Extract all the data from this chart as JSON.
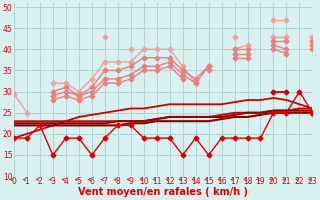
{
  "x": [
    0,
    1,
    2,
    3,
    4,
    5,
    6,
    7,
    8,
    9,
    10,
    11,
    12,
    13,
    14,
    15,
    16,
    17,
    18,
    19,
    20,
    21,
    22,
    23
  ],
  "lines": [
    {
      "name": "light_pink_erratic",
      "color": "#f0a0a0",
      "linewidth": 1.0,
      "marker": "D",
      "markersize": 2.5,
      "y": [
        29.5,
        25,
        null,
        null,
        null,
        null,
        null,
        43,
        null,
        40,
        null,
        null,
        null,
        null,
        null,
        null,
        null,
        43,
        null,
        null,
        47,
        47,
        null,
        43
      ]
    },
    {
      "name": "light_pink_rising1",
      "color": "#f0a0a0",
      "linewidth": 1.0,
      "marker": "D",
      "markersize": 2.5,
      "y": [
        null,
        null,
        null,
        32,
        32,
        30,
        33,
        37,
        37,
        37,
        40,
        40,
        40,
        36,
        32,
        36,
        null,
        40,
        41,
        null,
        43,
        43,
        null,
        43
      ]
    },
    {
      "name": "pink_rising2",
      "color": "#e88080",
      "linewidth": 1.0,
      "marker": "D",
      "markersize": 2.5,
      "y": [
        null,
        null,
        null,
        30,
        31,
        29,
        31,
        35,
        35,
        36,
        38,
        38,
        38,
        35,
        33,
        36,
        null,
        40,
        40,
        null,
        42,
        42,
        null,
        42
      ]
    },
    {
      "name": "pink_rising3",
      "color": "#e88080",
      "linewidth": 1.0,
      "marker": "D",
      "markersize": 2.5,
      "y": [
        null,
        null,
        null,
        29,
        30,
        29,
        30,
        33,
        33,
        34,
        36,
        36,
        37,
        34,
        32,
        36,
        null,
        39,
        39,
        null,
        41,
        40,
        null,
        41
      ]
    },
    {
      "name": "pink_rising4",
      "color": "#e88080",
      "linewidth": 1.0,
      "marker": "D",
      "markersize": 2.5,
      "y": [
        null,
        null,
        null,
        28,
        29,
        28,
        29,
        32,
        32,
        33,
        35,
        35,
        36,
        33,
        null,
        35,
        null,
        38,
        38,
        null,
        40,
        39,
        null,
        40
      ]
    },
    {
      "name": "red_line_steep",
      "color": "#cc0000",
      "linewidth": 1.3,
      "marker": "D",
      "markersize": 2.5,
      "y": [
        null,
        null,
        null,
        null,
        null,
        null,
        null,
        null,
        null,
        null,
        null,
        null,
        null,
        null,
        null,
        null,
        null,
        null,
        null,
        null,
        30,
        30,
        null,
        25
      ]
    },
    {
      "name": "dark_rising_line",
      "color": "#cc0000",
      "linewidth": 1.3,
      "marker": null,
      "markersize": 0,
      "y": [
        19,
        20,
        21,
        22,
        23,
        24,
        24.5,
        25,
        25.5,
        26,
        26,
        26.5,
        27,
        27,
        27,
        27,
        27,
        27.5,
        28,
        28,
        28.5,
        28,
        27,
        26
      ]
    },
    {
      "name": "dark_flat1",
      "color": "#cc0000",
      "linewidth": 1.3,
      "marker": null,
      "markersize": 0,
      "y": [
        23,
        23,
        23,
        23,
        23,
        23,
        23,
        23,
        23,
        23,
        23,
        23.5,
        24,
        24,
        24,
        24,
        24.5,
        25,
        25,
        25,
        25.5,
        25.5,
        26,
        26
      ]
    },
    {
      "name": "dark_flat2",
      "color": "#990000",
      "linewidth": 1.5,
      "marker": null,
      "markersize": 0,
      "y": [
        22.5,
        22.5,
        22.5,
        22.5,
        22.5,
        22.5,
        22.5,
        22.5,
        23,
        23,
        23,
        23.5,
        24,
        24,
        24,
        24,
        24,
        24.5,
        25,
        25,
        25.5,
        25.5,
        25.5,
        25.5
      ]
    },
    {
      "name": "dark_flat3",
      "color": "#880000",
      "linewidth": 1.5,
      "marker": null,
      "markersize": 0,
      "y": [
        22,
        22,
        22,
        22,
        22,
        22,
        22,
        22,
        22,
        22.5,
        22.5,
        23,
        23,
        23,
        23,
        23,
        23.5,
        24,
        24,
        24.5,
        25,
        25,
        25,
        25
      ]
    },
    {
      "name": "red_zigzag",
      "color": "#dd0000",
      "linewidth": 1.0,
      "marker": "D",
      "markersize": 2.5,
      "y": [
        19,
        19,
        22,
        15,
        19,
        19,
        15,
        19,
        22,
        22,
        19,
        19,
        19,
        15,
        19,
        15,
        19,
        19,
        19,
        19,
        25,
        25,
        30,
        25
      ]
    }
  ],
  "xlim": [
    0,
    23
  ],
  "ylim": [
    10,
    51
  ],
  "yticks": [
    10,
    15,
    20,
    25,
    30,
    35,
    40,
    45,
    50
  ],
  "xticks": [
    0,
    1,
    2,
    3,
    4,
    5,
    6,
    7,
    8,
    9,
    10,
    11,
    12,
    13,
    14,
    15,
    16,
    17,
    18,
    19,
    20,
    21,
    22,
    23
  ],
  "xlabel": "Vent moyen/en rafales ( km/h )",
  "background_color": "#d8f0f0",
  "grid_color": "#b0d4d4",
  "xlabel_color": "#dd0000",
  "xlabel_fontsize": 7,
  "tick_color": "#dd0000",
  "tick_fontsize": 5.5,
  "arrow_color": "#cc3333"
}
